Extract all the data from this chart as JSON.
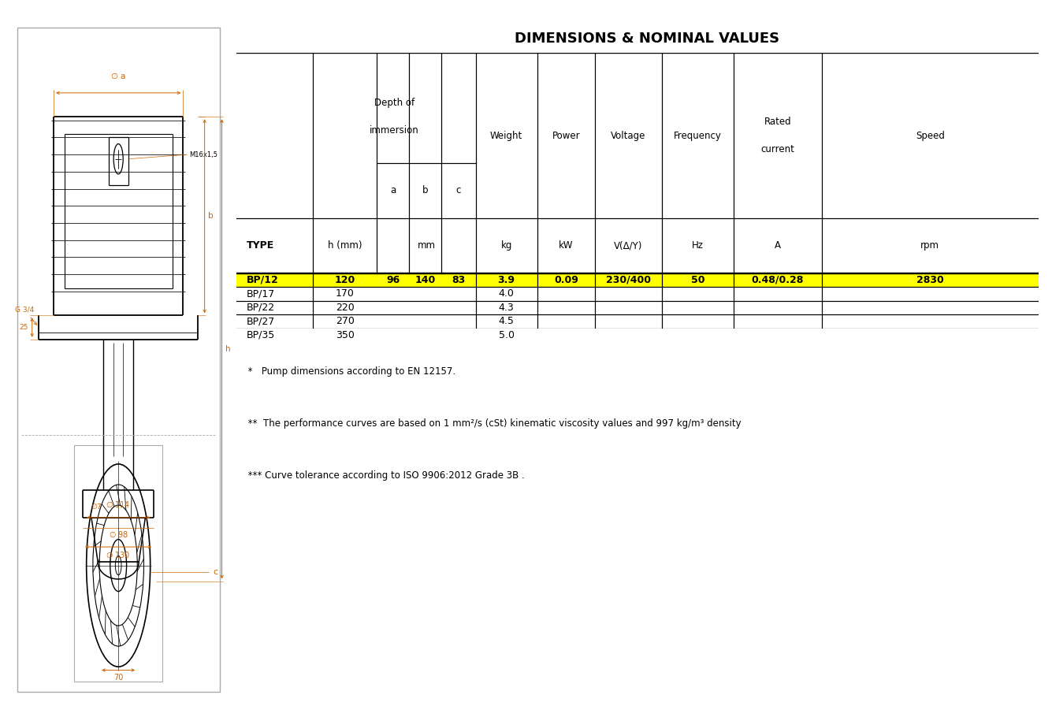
{
  "title": "DIMENSIONS & NOMINAL VALUES",
  "title_fontsize": 13,
  "background_color": "#ffffff",
  "table_data": [
    [
      "BP/12",
      "120",
      "96",
      "140",
      "83",
      "3.9",
      "0.09",
      "230/400",
      "50",
      "0.48/0.28",
      "2830"
    ],
    [
      "BP/17",
      "170",
      "",
      "",
      "",
      "4.0",
      "",
      "",
      "",
      "",
      ""
    ],
    [
      "BP/22",
      "220",
      "",
      "",
      "",
      "4.3",
      "",
      "",
      "",
      "",
      ""
    ],
    [
      "BP/27",
      "270",
      "",
      "",
      "",
      "4.5",
      "",
      "",
      "",
      "",
      ""
    ],
    [
      "BP/35",
      "350",
      "",
      "",
      "",
      "5.0",
      "",
      "",
      "",
      "",
      ""
    ]
  ],
  "highlight_row": 0,
  "highlight_color": "#ffff00",
  "notes": [
    " *   Pump dimensions according to EN 12157.",
    " **  The performance curves are based on 1 mm²/s (cSt) kinematic viscosity values and 997 kg/m³ density",
    " *** Curve tolerance according to ISO 9906:2012 Grade 3B ."
  ],
  "diagram_color": "#000000",
  "dimension_color": "#cc6600",
  "text_color": "#000000"
}
